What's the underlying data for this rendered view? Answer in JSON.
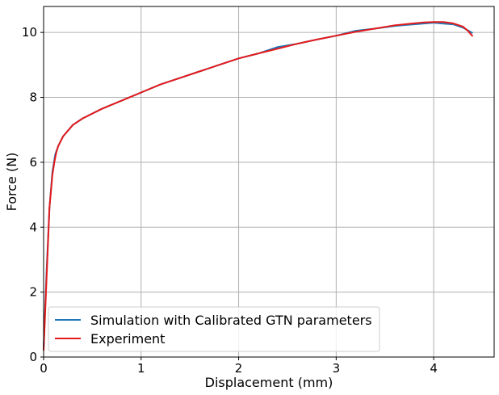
{
  "chart_data": {
    "type": "line",
    "title": "",
    "xlabel": "Displacement (mm)",
    "ylabel": "Force (N)",
    "xlim": [
      0,
      4.62
    ],
    "ylim": [
      0,
      10.8
    ],
    "xticks": [
      0,
      1,
      2,
      3,
      4
    ],
    "yticks": [
      0,
      2,
      4,
      6,
      8,
      10
    ],
    "grid": true,
    "legend_position": "lower-left",
    "series": [
      {
        "name": "Simulation with Calibrated GTN parameters",
        "color": "#1f77b4",
        "x": [
          0,
          0.03,
          0.06,
          0.09,
          0.12,
          0.15,
          0.2,
          0.3,
          0.4,
          0.6,
          0.8,
          1.0,
          1.2,
          1.4,
          1.6,
          1.8,
          2.0,
          2.2,
          2.4,
          2.6,
          2.8,
          3.0,
          3.2,
          3.4,
          3.6,
          3.8,
          4.0,
          4.1,
          4.2,
          4.3,
          4.4
        ],
        "y": [
          0.3,
          2.6,
          4.6,
          5.7,
          6.25,
          6.5,
          6.8,
          7.15,
          7.35,
          7.65,
          7.9,
          8.15,
          8.4,
          8.6,
          8.8,
          9.0,
          9.2,
          9.35,
          9.55,
          9.65,
          9.78,
          9.9,
          10.05,
          10.12,
          10.2,
          10.25,
          10.3,
          10.27,
          10.25,
          10.15,
          9.98
        ]
      },
      {
        "name": "Experiment",
        "color": "#e41a1c",
        "x": [
          0,
          0.03,
          0.06,
          0.09,
          0.11,
          0.13,
          0.15,
          0.2,
          0.3,
          0.4,
          0.6,
          0.8,
          1.0,
          1.2,
          1.4,
          1.6,
          1.8,
          2.0,
          2.2,
          2.4,
          2.6,
          2.8,
          3.0,
          3.2,
          3.4,
          3.6,
          3.8,
          3.9,
          4.0,
          4.1,
          4.2,
          4.3,
          4.35,
          4.4
        ],
        "y": [
          0.2,
          2.4,
          4.6,
          5.6,
          6.0,
          6.3,
          6.5,
          6.8,
          7.15,
          7.35,
          7.65,
          7.9,
          8.15,
          8.4,
          8.6,
          8.8,
          9.0,
          9.2,
          9.35,
          9.5,
          9.65,
          9.78,
          9.9,
          10.02,
          10.12,
          10.22,
          10.28,
          10.31,
          10.32,
          10.32,
          10.28,
          10.18,
          10.05,
          9.88
        ]
      }
    ]
  }
}
